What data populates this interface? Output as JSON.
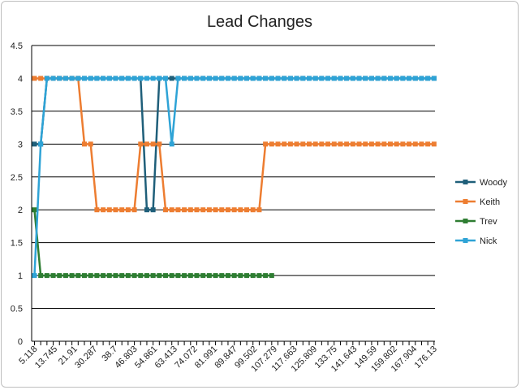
{
  "chart_data": {
    "type": "line",
    "title": "Lead Changes",
    "xlabel": "",
    "ylabel": "",
    "ylim": [
      0,
      4.5
    ],
    "ytick_step": 0.5,
    "grid": true,
    "legend_position": "right",
    "x_tick_labels": [
      "5.118",
      "13.745",
      "21.91",
      "30.287",
      "38.7",
      "46.803",
      "54.861",
      "63.413",
      "74.072",
      "81.991",
      "89.847",
      "99.502",
      "107.279",
      "117.663",
      "125.809",
      "133.75",
      "141.643",
      "149.59",
      "159.802",
      "167.904",
      "176.13"
    ],
    "series": [
      {
        "name": "Woody",
        "color": "#1f5f7a",
        "values": [
          3,
          3,
          4,
          4,
          4,
          4,
          4,
          4,
          4,
          4,
          4,
          4,
          4,
          4,
          4,
          4,
          4,
          4,
          2,
          2,
          4,
          4,
          4,
          4,
          4,
          4,
          4,
          4,
          4,
          4,
          4,
          4,
          4,
          4,
          4,
          4,
          4,
          4,
          4,
          4,
          4,
          4,
          4,
          4,
          4,
          4,
          4,
          4,
          4,
          4,
          4,
          4,
          4,
          4,
          4,
          4,
          4,
          4,
          4,
          4,
          4,
          4,
          4,
          4,
          4
        ]
      },
      {
        "name": "Keith",
        "color": "#ed7d31",
        "values": [
          4,
          4,
          4,
          4,
          4,
          4,
          4,
          4,
          3,
          3,
          2,
          2,
          2,
          2,
          2,
          2,
          2,
          3,
          3,
          3,
          3,
          2,
          2,
          2,
          2,
          2,
          2,
          2,
          2,
          2,
          2,
          2,
          2,
          2,
          2,
          2,
          2,
          3,
          3,
          3,
          3,
          3,
          3,
          3,
          3,
          3,
          3,
          3,
          3,
          3,
          3,
          3,
          3,
          3,
          3,
          3,
          3,
          3,
          3,
          3,
          3,
          3,
          3,
          3,
          3
        ]
      },
      {
        "name": "Trev",
        "color": "#2e7d32",
        "values": [
          2,
          1,
          1,
          1,
          1,
          1,
          1,
          1,
          1,
          1,
          1,
          1,
          1,
          1,
          1,
          1,
          1,
          1,
          1,
          1,
          1,
          1,
          1,
          1,
          1,
          1,
          1,
          1,
          1,
          1,
          1,
          1,
          1,
          1,
          1,
          1,
          1,
          1,
          1
        ]
      },
      {
        "name": "Nick",
        "color": "#2ea3d6",
        "values": [
          1,
          3,
          4,
          4,
          4,
          4,
          4,
          4,
          4,
          4,
          4,
          4,
          4,
          4,
          4,
          4,
          4,
          4,
          4,
          4,
          4,
          4,
          3,
          4,
          4,
          4,
          4,
          4,
          4,
          4,
          4,
          4,
          4,
          4,
          4,
          4,
          4,
          4,
          4,
          4,
          4,
          4,
          4,
          4,
          4,
          4,
          4,
          4,
          4,
          4,
          4,
          4,
          4,
          4,
          4,
          4,
          4,
          4,
          4,
          4,
          4,
          4,
          4,
          4,
          4
        ]
      }
    ]
  }
}
